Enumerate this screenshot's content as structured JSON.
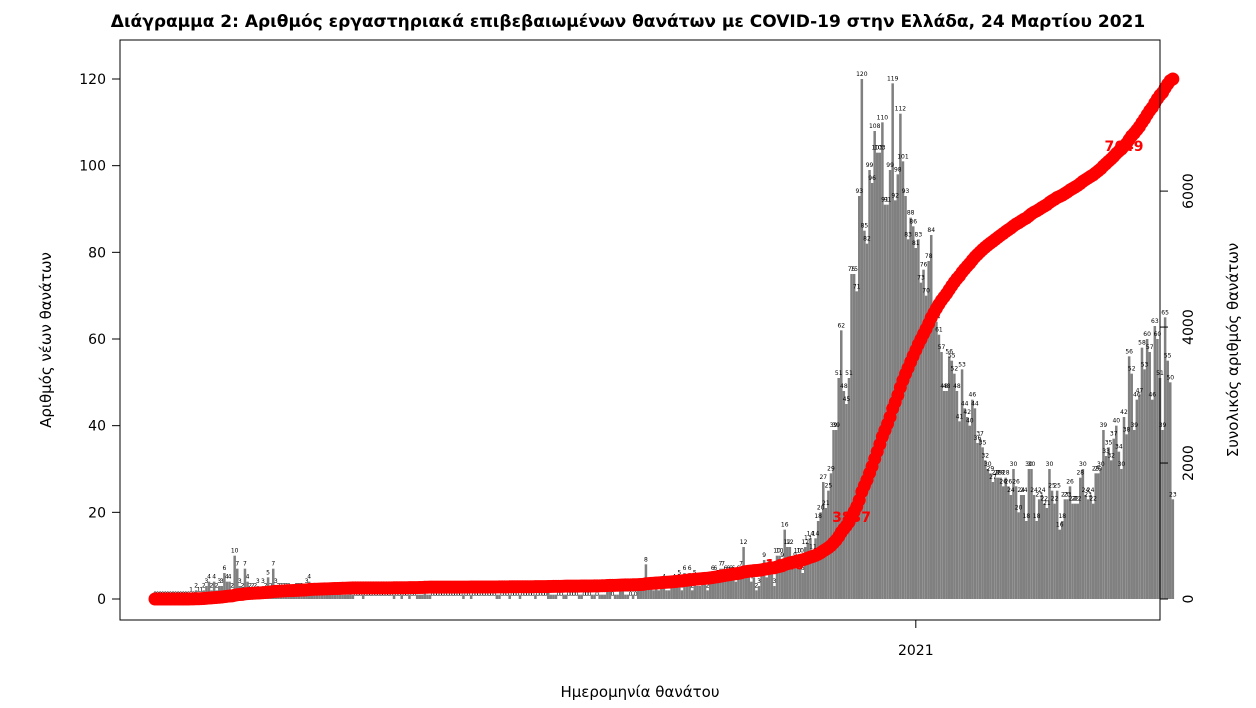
{
  "chart_data": {
    "type": "bar",
    "title": "Διάγραμμα 2: Αριθμός εργαστηριακά επιβεβαιωμένων θανάτων με COVID-19 στην Ελλάδα, 24 Μαρτίου 2021",
    "xlabel": "Ημερομηνία θανάτου",
    "ylabel": "Αριθμός νέων θανάτων",
    "y2label": "Συνολικός αριθμός θανάτων",
    "start_date": "2020-03-11",
    "end_date": "2021-03-23",
    "x_tick_labels": [
      "2021"
    ],
    "ylim": [
      0,
      120
    ],
    "y_ticks": [
      0,
      20,
      40,
      60,
      80,
      100,
      120
    ],
    "y2lim": [
      0,
      7649
    ],
    "y2_ticks": [
      0,
      2000,
      4000,
      6000
    ],
    "grid": false,
    "legend": "none",
    "colors": {
      "bars": "#808080",
      "cumulative": "#ff0000"
    },
    "series": [
      {
        "type": "bar",
        "values": [
          0,
          0,
          0,
          0,
          0,
          0,
          0,
          0,
          0,
          0,
          0,
          0,
          0,
          0,
          1,
          0,
          2,
          1,
          1,
          2,
          3,
          4,
          2,
          4,
          2,
          3,
          3,
          6,
          4,
          4,
          2,
          10,
          7,
          3,
          2,
          7,
          4,
          2,
          2,
          2,
          3,
          1,
          3,
          2,
          5,
          2,
          7,
          3,
          2,
          2,
          2,
          2,
          2,
          1,
          1,
          2,
          2,
          2,
          1,
          3,
          4,
          2,
          2,
          1,
          1,
          2,
          1,
          1,
          2,
          1,
          1,
          1,
          2,
          1,
          1,
          1,
          2,
          1,
          0,
          0,
          0,
          1,
          0,
          0,
          0,
          0,
          0,
          0,
          0,
          0,
          0,
          0,
          0,
          1,
          0,
          0,
          1,
          0,
          0,
          1,
          0,
          0,
          1,
          1,
          1,
          2,
          1,
          1,
          0,
          0,
          0,
          0,
          0,
          0,
          0,
          0,
          0,
          0,
          0,
          0,
          1,
          0,
          0,
          1,
          0,
          0,
          0,
          0,
          0,
          0,
          0,
          0,
          0,
          1,
          1,
          0,
          0,
          0,
          1,
          0,
          0,
          0,
          1,
          0,
          0,
          0,
          0,
          0,
          1,
          0,
          0,
          0,
          0,
          2,
          1,
          1,
          1,
          0,
          0,
          1,
          1,
          0,
          0,
          0,
          0,
          1,
          1,
          0,
          0,
          0,
          1,
          1,
          0,
          1,
          1,
          1,
          2,
          2,
          0,
          1,
          1,
          2,
          2,
          1,
          1,
          0,
          1,
          0,
          2,
          2,
          2,
          8,
          3,
          3,
          2,
          3,
          2,
          3,
          4,
          2,
          2,
          3,
          4,
          3,
          5,
          2,
          6,
          4,
          6,
          2,
          5,
          3,
          3,
          4,
          4,
          2,
          4,
          6,
          6,
          5,
          7,
          7,
          6,
          6,
          6,
          6,
          4,
          6,
          7,
          12,
          5,
          6,
          4,
          5,
          2,
          3,
          6,
          9,
          5,
          7,
          6,
          3,
          10,
          10,
          9,
          16,
          12,
          12,
          8,
          9,
          10,
          10,
          6,
          12,
          13,
          14,
          11,
          14,
          18,
          20,
          27,
          21,
          25,
          29,
          39,
          39,
          51,
          62,
          48,
          45,
          51,
          75,
          75,
          71,
          93,
          120,
          85,
          82,
          99,
          96,
          108,
          103,
          103,
          110,
          91,
          91,
          99,
          119,
          92,
          98,
          112,
          101,
          93,
          83,
          88,
          86,
          81,
          83,
          73,
          76,
          70,
          78,
          84,
          66,
          64,
          61,
          57,
          48,
          48,
          56,
          55,
          52,
          48,
          41,
          53,
          44,
          42,
          40,
          46,
          44,
          36,
          37,
          35,
          32,
          30,
          29,
          27,
          28,
          28,
          28,
          26,
          28,
          26,
          24,
          30,
          26,
          20,
          24,
          24,
          18,
          30,
          30,
          24,
          18,
          23,
          24,
          22,
          21,
          30,
          25,
          22,
          25,
          16,
          18,
          23,
          23,
          26,
          22,
          22,
          22,
          28,
          30,
          24,
          23,
          24,
          22,
          29,
          29,
          30,
          39,
          33,
          35,
          32,
          37,
          40,
          34,
          30,
          42,
          38,
          56,
          52,
          39,
          46,
          47,
          58,
          53,
          60,
          57,
          46,
          63,
          60,
          51,
          39,
          65,
          55,
          50,
          23
        ],
        "labels": [
          "0",
          "0",
          "0",
          "0",
          "0",
          "0",
          "0",
          "0",
          "0",
          "0",
          "0",
          "0",
          "0",
          "0",
          "1",
          "0",
          "2",
          "1",
          "1",
          "2",
          "3",
          "4",
          "2",
          "4",
          "2",
          "3",
          "3",
          "6",
          "4",
          "4",
          "2",
          "10",
          "7",
          "3",
          "2",
          "7",
          "4",
          "2",
          "2",
          "2",
          "3",
          "1",
          "3",
          "2",
          "5",
          "2",
          "7",
          "3",
          "2",
          "2",
          "2",
          "2",
          "2",
          "1",
          "1",
          "2",
          "2",
          "2",
          "1",
          "3",
          "4",
          "2",
          "2",
          "1",
          "1",
          "2",
          "1",
          "1",
          "2",
          "1",
          "1",
          "1",
          "2",
          "1",
          "1",
          "1",
          "2",
          "1",
          "0",
          "0",
          "0",
          "1",
          "0",
          "0",
          "0",
          "0",
          "0",
          "0",
          "0",
          "0",
          "0",
          "0",
          "0",
          "1",
          "0",
          "0",
          "1",
          "0",
          "0",
          "1",
          "0",
          "0",
          "1",
          "1",
          "1",
          "2",
          "1",
          "1",
          "0",
          "0",
          "0",
          "0",
          "0",
          "0",
          "0",
          "0",
          "0",
          "0",
          "0",
          "0",
          "1",
          "0",
          "0",
          "1",
          "0",
          "0",
          "0",
          "0",
          "0",
          "0",
          "0",
          "0",
          "0",
          "1",
          "1",
          "0",
          "0",
          "0",
          "1",
          "0",
          "0",
          "0",
          "1",
          "0",
          "0",
          "0",
          "0",
          "0",
          "1",
          "0",
          "0",
          "0",
          "0",
          "2",
          "1",
          "1",
          "1",
          "0",
          "0",
          "1",
          "1",
          "0",
          "0",
          "0",
          "0",
          "1",
          "1",
          "0",
          "0",
          "0",
          "1",
          "1",
          "0",
          "1",
          "1",
          "1",
          "2",
          "2",
          "0",
          "1",
          "1",
          "2",
          "2",
          "1",
          "1",
          "0",
          "1",
          "0",
          "2",
          "2",
          "2",
          "8",
          "3",
          "3",
          "2",
          "3",
          "2",
          "3",
          "4",
          "2",
          "2",
          "3",
          "4",
          "3",
          "5",
          "2",
          "6",
          "4",
          "6",
          "2",
          "5",
          "3",
          "3",
          "4",
          "4",
          "2",
          "4",
          "6",
          "6",
          "5",
          "7",
          "7",
          "6",
          "6",
          "6",
          "6",
          "4",
          "6",
          "7",
          "12",
          "5",
          "6",
          "4",
          "5",
          "2",
          "3",
          "6",
          "9",
          "5",
          "7",
          "6",
          "3",
          "10",
          "10",
          "9",
          "16",
          "12",
          "12",
          "8",
          "9",
          "10",
          "10",
          "6",
          "12",
          "13",
          "14",
          "11",
          "14",
          "18",
          "20",
          "27",
          "21",
          "25",
          "29",
          "39",
          "39",
          "51",
          "62",
          "48",
          "45",
          "51",
          "75",
          "75",
          "71",
          "93",
          "120",
          "85",
          "82",
          "99",
          "96",
          "108",
          "103",
          "103",
          "110",
          "91",
          "91",
          "99",
          "119",
          "92",
          "98",
          "112",
          "101",
          "93",
          "83",
          "88",
          "86",
          "81",
          "83",
          "73",
          "76",
          "70",
          "78",
          "84",
          "66",
          "64",
          "61",
          "57",
          "48",
          "48",
          "56",
          "55",
          "52",
          "48",
          "41",
          "53",
          "44",
          "42",
          "40",
          "46",
          "44",
          "36",
          "37",
          "35",
          "32",
          "30",
          "29",
          "27",
          "28",
          "28",
          "28",
          "26",
          "28",
          "26",
          "24",
          "30",
          "26",
          "20",
          "24",
          "24",
          "18",
          "30",
          "30",
          "24",
          "18",
          "23",
          "24",
          "22",
          "21",
          "30",
          "25",
          "22",
          "25",
          "16",
          "18",
          "23",
          "23",
          "26",
          "22",
          "22",
          "22",
          "28",
          "30",
          "24",
          "23",
          "24",
          "22",
          "29",
          "29",
          "30",
          "39",
          "33",
          "35",
          "32",
          "37",
          "40",
          "34",
          "30",
          "42",
          "38",
          "56",
          "52",
          "39",
          "46",
          "47",
          "58",
          "53",
          "60",
          "57",
          "46",
          "63",
          "60",
          "51",
          "39",
          "65",
          "55",
          "50",
          "23"
        ]
      },
      {
        "type": "line",
        "axis": "right",
        "annotations": [
          {
            "date": "2020-11-11",
            "value": "1920"
          },
          {
            "date": "2020-12-07",
            "value": "3837"
          },
          {
            "date": "2021-03-23",
            "value": "7649"
          }
        ]
      }
    ]
  }
}
